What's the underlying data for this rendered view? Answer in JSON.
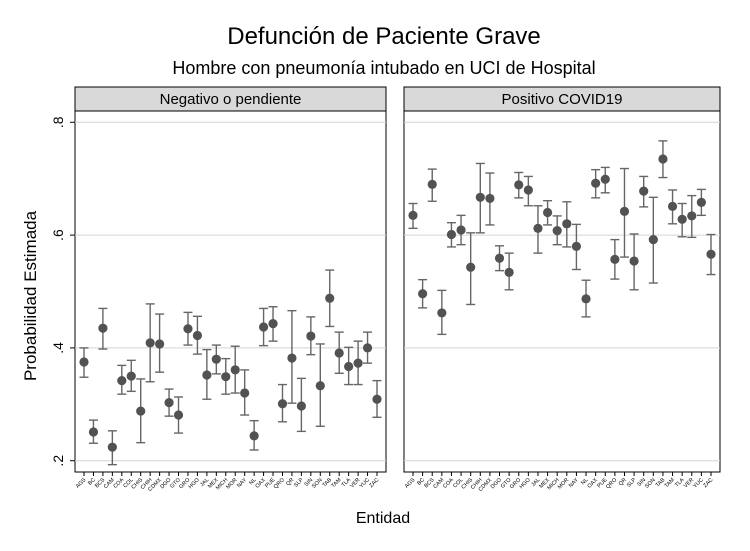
{
  "chart_data": {
    "type": "scatter",
    "title": "Defunción de Paciente Grave",
    "subtitle": "Hombre con pneumonía intubado en UCI de Hospital",
    "xlabel": "Entidad",
    "ylabel": "Probabilidad Estimada",
    "ylim": [
      0.2,
      0.8
    ],
    "yticks": [
      0.2,
      0.4,
      0.6,
      0.8
    ],
    "ytick_labels": [
      ".2",
      ".4",
      ".6",
      ".8"
    ],
    "grid": true,
    "categories": [
      "AGS",
      "BC",
      "BCS",
      "CAM",
      "COA",
      "COL",
      "CHIS",
      "CHIH",
      "CDMX",
      "DGO",
      "GTO",
      "GRO",
      "HGO",
      "JAL",
      "MEX",
      "MICH",
      "MOR",
      "NAY",
      "NL",
      "OAX",
      "PUE",
      "QRO",
      "QR",
      "SLP",
      "SIN",
      "SON",
      "TAB",
      "TAM",
      "TLA",
      "VER",
      "YUC",
      "ZAC"
    ],
    "panels": [
      {
        "name": "Negativo o pendiente",
        "estimates": [
          0.375,
          0.251,
          0.435,
          0.224,
          0.342,
          0.35,
          0.288,
          0.409,
          0.407,
          0.303,
          0.281,
          0.434,
          0.422,
          0.352,
          0.38,
          0.349,
          0.361,
          0.32,
          0.244,
          0.437,
          0.443,
          0.301,
          0.382,
          0.297,
          0.421,
          0.333,
          0.488,
          0.391,
          0.367,
          0.373,
          0.4,
          0.309
        ],
        "lower": [
          0.348,
          0.231,
          0.398,
          0.193,
          0.318,
          0.323,
          0.232,
          0.34,
          0.357,
          0.279,
          0.249,
          0.405,
          0.389,
          0.309,
          0.354,
          0.318,
          0.32,
          0.281,
          0.219,
          0.404,
          0.412,
          0.269,
          0.302,
          0.252,
          0.388,
          0.261,
          0.438,
          0.355,
          0.335,
          0.335,
          0.373,
          0.277
        ],
        "upper": [
          0.4,
          0.272,
          0.47,
          0.253,
          0.369,
          0.378,
          0.345,
          0.478,
          0.46,
          0.327,
          0.313,
          0.463,
          0.456,
          0.397,
          0.405,
          0.381,
          0.403,
          0.361,
          0.271,
          0.47,
          0.473,
          0.335,
          0.466,
          0.346,
          0.455,
          0.407,
          0.538,
          0.428,
          0.401,
          0.412,
          0.428,
          0.342
        ]
      },
      {
        "name": "Positivo COVID19",
        "estimates": [
          0.635,
          0.496,
          0.69,
          0.462,
          0.601,
          0.609,
          0.543,
          0.667,
          0.665,
          0.559,
          0.534,
          0.689,
          0.68,
          0.612,
          0.64,
          0.608,
          0.62,
          0.58,
          0.487,
          0.692,
          0.699,
          0.557,
          0.642,
          0.554,
          0.678,
          0.592,
          0.735,
          0.651,
          0.628,
          0.634,
          0.658,
          0.566
        ],
        "lower": [
          0.612,
          0.471,
          0.66,
          0.424,
          0.579,
          0.583,
          0.477,
          0.604,
          0.618,
          0.537,
          0.503,
          0.666,
          0.652,
          0.568,
          0.618,
          0.583,
          0.579,
          0.539,
          0.455,
          0.666,
          0.675,
          0.522,
          0.561,
          0.503,
          0.65,
          0.515,
          0.702,
          0.62,
          0.597,
          0.596,
          0.635,
          0.53
        ],
        "upper": [
          0.656,
          0.521,
          0.717,
          0.502,
          0.622,
          0.635,
          0.604,
          0.727,
          0.71,
          0.581,
          0.568,
          0.711,
          0.704,
          0.652,
          0.661,
          0.634,
          0.659,
          0.619,
          0.52,
          0.716,
          0.72,
          0.592,
          0.718,
          0.602,
          0.704,
          0.667,
          0.767,
          0.68,
          0.656,
          0.67,
          0.681,
          0.601
        ]
      }
    ]
  }
}
